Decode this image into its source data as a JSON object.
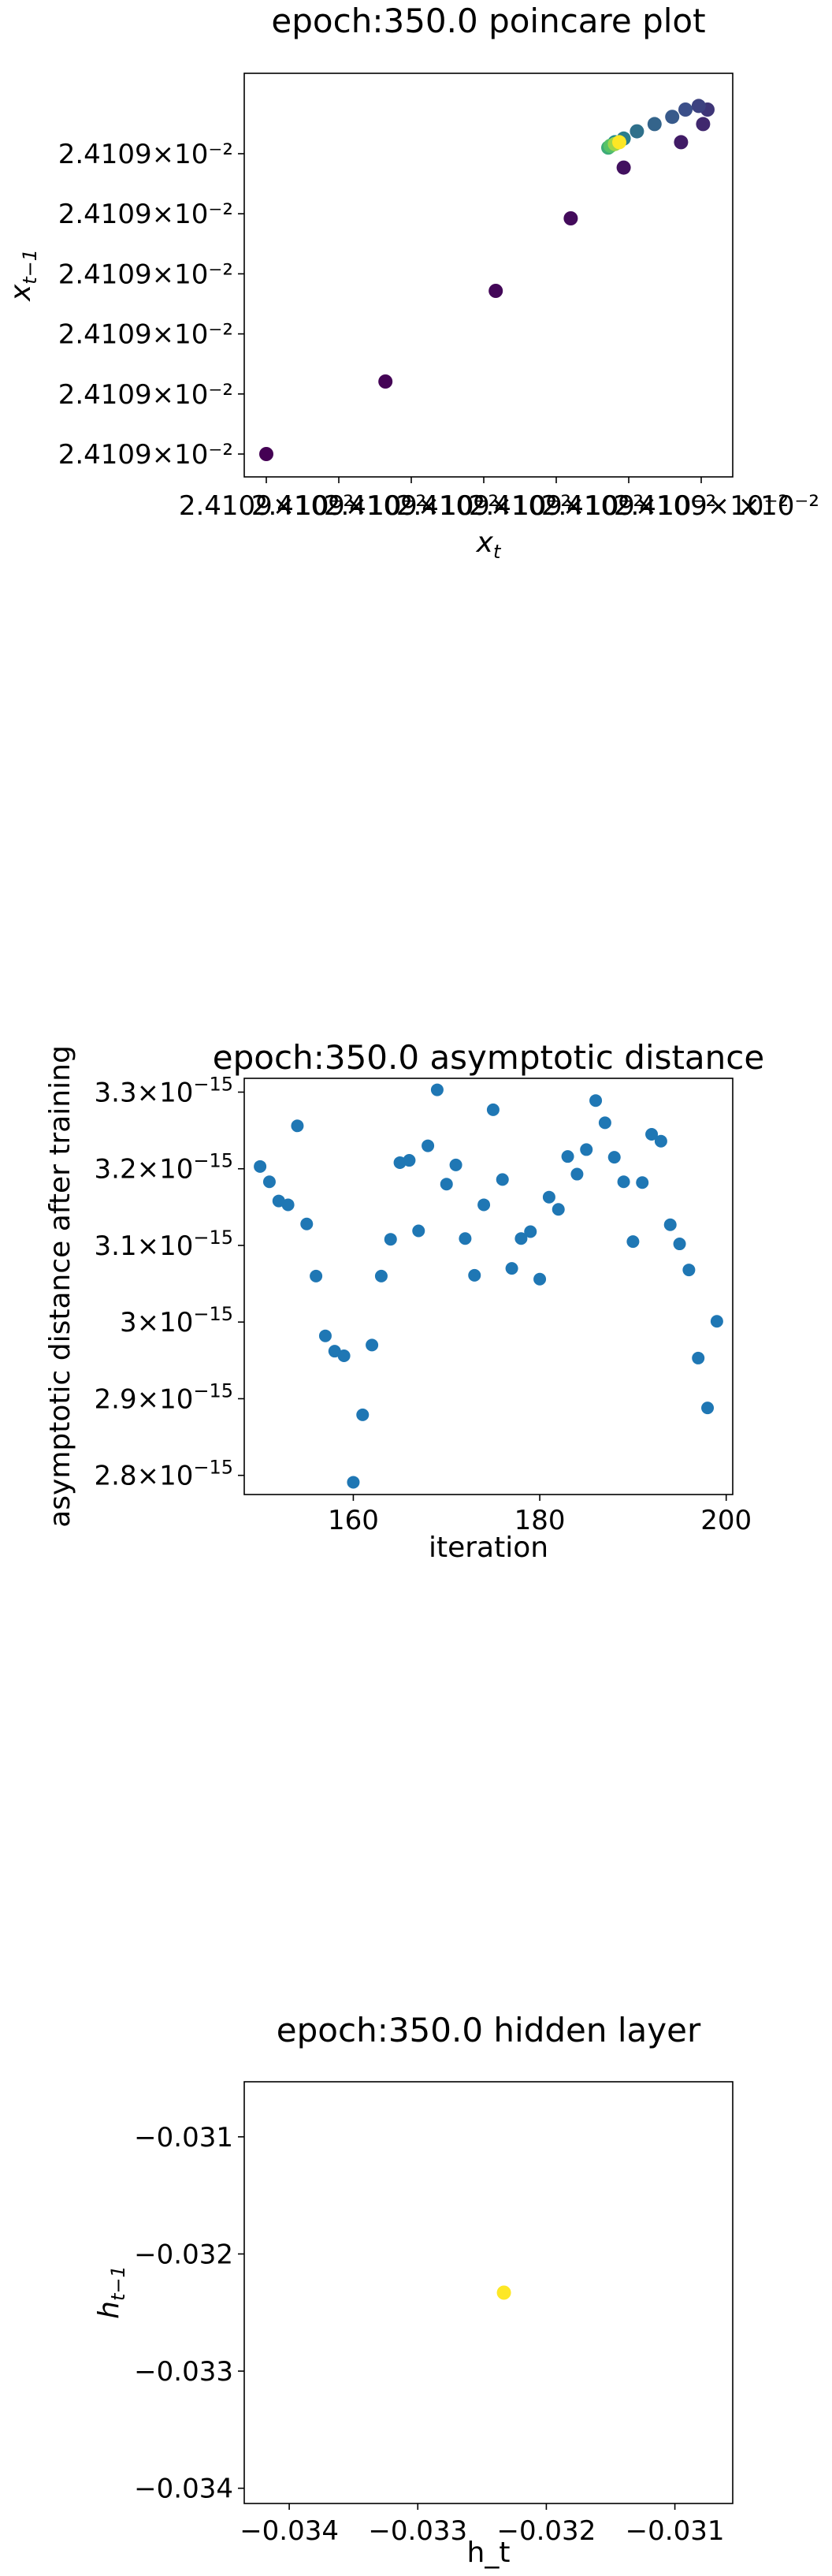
{
  "chart_data": [
    {
      "type": "scatter",
      "title": "epoch:350.0 poincare plot",
      "xlabel_base": "x",
      "xlabel_sub": "t",
      "ylabel_base": "x",
      "ylabel_sub": "t−1",
      "colormap": "viridis",
      "x_tick_label": "2.4109×10⁻²",
      "y_tick_labels": [
        "2.4109×10⁻²",
        "2.4109×10⁻²",
        "2.4109×10⁻²",
        "2.4109×10⁻²",
        "2.4109×10⁻²",
        "2.4109×10⁻²"
      ],
      "x_offset_text": "×10⁻²",
      "x_ticks_note": "seven overlapping x tick labels each reading 2.4109×10⁻²",
      "points": [
        {
          "x": 0.0,
          "y": 0.0,
          "c": 0.0
        },
        {
          "x": 0.27,
          "y": 0.2,
          "c": 0.01
        },
        {
          "x": 0.52,
          "y": 0.45,
          "c": 0.02
        },
        {
          "x": 0.69,
          "y": 0.65,
          "c": 0.03
        },
        {
          "x": 0.81,
          "y": 0.79,
          "c": 0.05
        },
        {
          "x": 0.94,
          "y": 0.86,
          "c": 0.08
        },
        {
          "x": 0.99,
          "y": 0.91,
          "c": 0.12
        },
        {
          "x": 1.0,
          "y": 0.95,
          "c": 0.16
        },
        {
          "x": 0.98,
          "y": 0.96,
          "c": 0.2
        },
        {
          "x": 0.95,
          "y": 0.95,
          "c": 0.24
        },
        {
          "x": 0.92,
          "y": 0.93,
          "c": 0.28
        },
        {
          "x": 0.88,
          "y": 0.91,
          "c": 0.32
        },
        {
          "x": 0.84,
          "y": 0.89,
          "c": 0.37
        },
        {
          "x": 0.81,
          "y": 0.87,
          "c": 0.42
        },
        {
          "x": 0.79,
          "y": 0.86,
          "c": 0.48
        },
        {
          "x": 0.78,
          "y": 0.85,
          "c": 0.55
        },
        {
          "x": 0.775,
          "y": 0.845,
          "c": 0.62
        },
        {
          "x": 0.78,
          "y": 0.85,
          "c": 0.72
        },
        {
          "x": 0.79,
          "y": 0.855,
          "c": 0.85
        },
        {
          "x": 0.8,
          "y": 0.86,
          "c": 1.0
        }
      ]
    },
    {
      "type": "scatter",
      "title": "epoch:350.0 asymptotic distance",
      "xlabel": "iteration",
      "ylabel": "asymptotic distance after training",
      "color": "#1f77b4",
      "xlim": [
        148.3,
        200.7
      ],
      "ylim": [
        2.775,
        3.318
      ],
      "x_ticks": [
        160,
        180,
        200
      ],
      "y_ticks": [
        {
          "value": 2.8,
          "mant": "2.8×10",
          "exp": "−15"
        },
        {
          "value": 2.9,
          "mant": "2.9×10",
          "exp": "−15"
        },
        {
          "value": 3.0,
          "mant": "3×10",
          "exp": "−15"
        },
        {
          "value": 3.1,
          "mant": "3.1×10",
          "exp": "−15"
        },
        {
          "value": 3.2,
          "mant": "3.2×10",
          "exp": "−15"
        },
        {
          "value": 3.3,
          "mant": "3.3×10",
          "exp": "−15"
        }
      ],
      "x": [
        150,
        151,
        152,
        153,
        154,
        155,
        156,
        157,
        158,
        159,
        160,
        161,
        162,
        163,
        164,
        165,
        166,
        167,
        168,
        169,
        170,
        171,
        172,
        173,
        174,
        175,
        176,
        177,
        178,
        179,
        180,
        181,
        182,
        183,
        184,
        185,
        186,
        187,
        188,
        189,
        190,
        191,
        192,
        193,
        194,
        195,
        196,
        197,
        198,
        199
      ],
      "y": [
        3.203,
        3.183,
        3.158,
        3.153,
        3.256,
        3.128,
        3.06,
        2.982,
        2.962,
        2.956,
        2.791,
        2.879,
        2.97,
        3.06,
        3.108,
        3.208,
        3.211,
        3.119,
        3.23,
        3.303,
        3.18,
        3.205,
        3.109,
        3.061,
        3.153,
        3.277,
        3.186,
        3.07,
        3.109,
        3.118,
        3.056,
        3.163,
        3.147,
        3.216,
        3.193,
        3.225,
        3.289,
        3.26,
        3.215,
        3.183,
        3.105,
        3.182,
        3.245,
        3.236,
        3.127,
        3.102,
        3.068,
        2.953,
        2.888,
        3.001
      ],
      "unit_power": "×10⁻¹⁵"
    },
    {
      "type": "scatter",
      "title": "epoch:350.0 hidden layer",
      "xlabel": "h_t",
      "ylabel_base": "h",
      "ylabel_sub": "t−1",
      "color": "#fde725",
      "xlim": [
        -0.03435,
        -0.03055
      ],
      "ylim": [
        -0.03413,
        -0.03053
      ],
      "x_ticks": [
        {
          "value": -0.034,
          "label": "−0.034"
        },
        {
          "value": -0.033,
          "label": "−0.033"
        },
        {
          "value": -0.032,
          "label": "−0.032"
        },
        {
          "value": -0.031,
          "label": "−0.031"
        }
      ],
      "y_ticks": [
        {
          "value": -0.031,
          "label": "−0.031"
        },
        {
          "value": -0.032,
          "label": "−0.032"
        },
        {
          "value": -0.033,
          "label": "−0.033"
        },
        {
          "value": -0.034,
          "label": "−0.034"
        }
      ],
      "points": [
        {
          "x": -0.03233,
          "y": -0.03233
        }
      ]
    }
  ]
}
